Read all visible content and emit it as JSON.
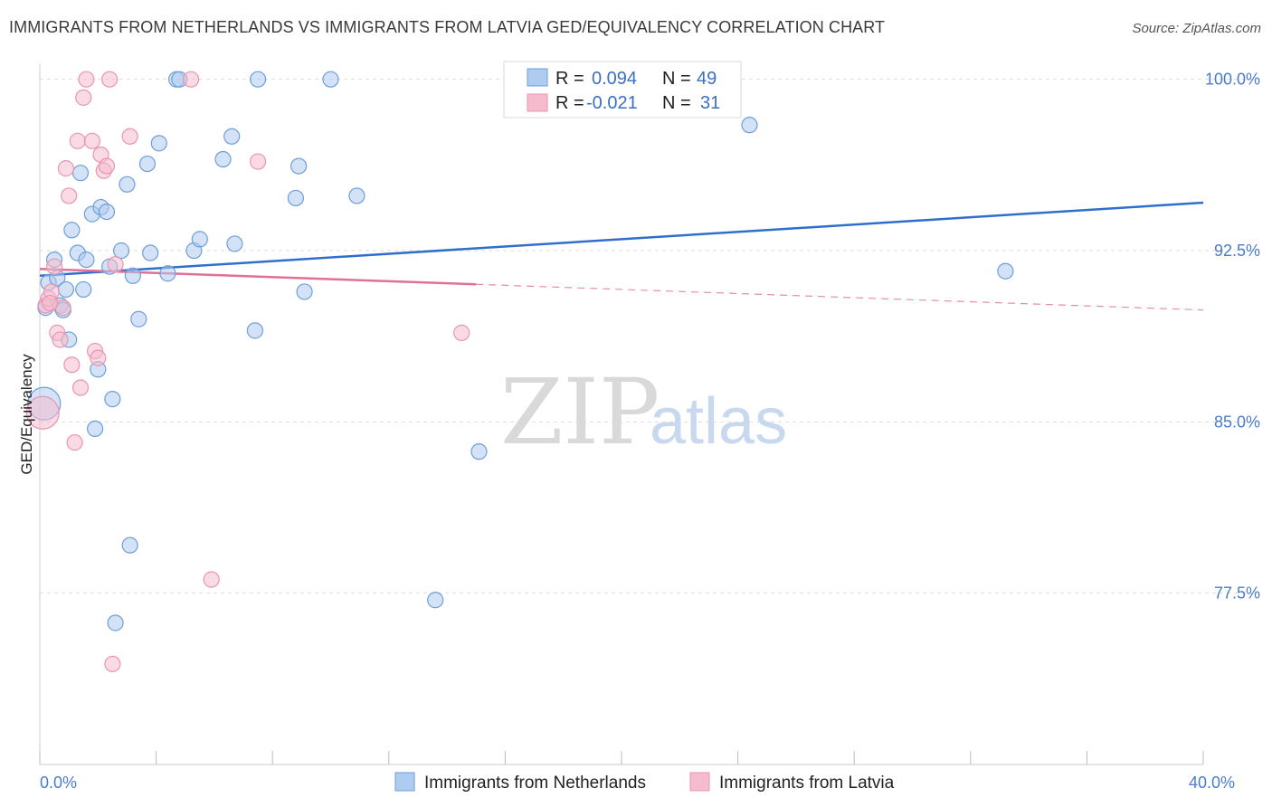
{
  "title": "IMMIGRANTS FROM NETHERLANDS VS IMMIGRANTS FROM LATVIA GED/EQUIVALENCY CORRELATION CHART",
  "source": "Source: ZipAtlas.com",
  "watermark": {
    "zip": "ZIP",
    "atlas": "atlas"
  },
  "colors": {
    "blue_fill": "#aecbf0",
    "blue_stroke": "#6e9fd8",
    "blue_line": "#2f6fcc",
    "pink_fill": "#f5bccd",
    "pink_stroke": "#e896b0",
    "pink_line": "#e07098",
    "tick_text": "#4a7ccc",
    "grid": "#dddddd"
  },
  "legend": {
    "rows": [
      {
        "r_label": "R =",
        "r_value": "0.094",
        "n_label": "N =",
        "n_value": "49"
      },
      {
        "r_label": "R =",
        "r_value": "-0.021",
        "n_label": "N =",
        "n_value": "31"
      }
    ]
  },
  "chart_data": {
    "type": "scatter",
    "ylabel": "GED/Equivalency",
    "xlabel": "",
    "xlim": [
      0,
      40
    ],
    "ylim": [
      70,
      100.7
    ],
    "y_ticks": [
      {
        "value": 100.0,
        "label": "100.0%"
      },
      {
        "value": 92.5,
        "label": "92.5%"
      },
      {
        "value": 85.0,
        "label": "85.0%"
      },
      {
        "value": 77.5,
        "label": "77.5%"
      }
    ],
    "x_tick_labels": [
      {
        "value": 0,
        "label": "0.0%"
      },
      {
        "value": 40,
        "label": "40.0%"
      }
    ],
    "legend_position": "top-center",
    "grid": true,
    "series": [
      {
        "name": "Immigrants from Netherlands",
        "color": "blue",
        "trend": {
          "x0": 0,
          "y0": 91.4,
          "x1": 40,
          "y1": 94.6,
          "dashed_from": null
        },
        "points": [
          [
            0.3,
            91.1
          ],
          [
            0.5,
            92.1
          ],
          [
            0.6,
            91.3
          ],
          [
            0.7,
            90.1
          ],
          [
            0.8,
            89.9
          ],
          [
            0.9,
            90.8
          ],
          [
            1.0,
            88.6
          ],
          [
            1.1,
            93.4
          ],
          [
            1.3,
            92.4
          ],
          [
            1.4,
            95.9
          ],
          [
            1.5,
            90.8
          ],
          [
            1.6,
            92.1
          ],
          [
            1.8,
            94.1
          ],
          [
            1.9,
            84.7
          ],
          [
            2.0,
            87.3
          ],
          [
            2.1,
            94.4
          ],
          [
            2.3,
            94.2
          ],
          [
            2.4,
            91.8
          ],
          [
            2.5,
            86.0
          ],
          [
            2.6,
            76.2
          ],
          [
            2.8,
            92.5
          ],
          [
            3.0,
            95.4
          ],
          [
            3.1,
            79.6
          ],
          [
            3.2,
            91.4
          ],
          [
            3.4,
            89.5
          ],
          [
            3.7,
            96.3
          ],
          [
            3.8,
            92.4
          ],
          [
            4.1,
            97.2
          ],
          [
            4.4,
            91.5
          ],
          [
            4.7,
            100.0
          ],
          [
            4.8,
            100.0
          ],
          [
            5.3,
            92.5
          ],
          [
            5.5,
            93.0
          ],
          [
            6.3,
            96.5
          ],
          [
            6.6,
            97.5
          ],
          [
            6.7,
            92.8
          ],
          [
            7.4,
            89.0
          ],
          [
            7.5,
            100.0
          ],
          [
            8.8,
            94.8
          ],
          [
            8.9,
            96.2
          ],
          [
            9.1,
            90.7
          ],
          [
            10.0,
            100.0
          ],
          [
            10.9,
            94.9
          ],
          [
            13.6,
            77.2
          ],
          [
            15.1,
            83.7
          ],
          [
            24.4,
            98.0
          ],
          [
            33.2,
            91.6
          ],
          [
            0.15,
            85.8
          ],
          [
            0.2,
            90.0
          ]
        ]
      },
      {
        "name": "Immigrants from Latvia",
        "color": "pink",
        "trend": {
          "x0": 0,
          "y0": 91.7,
          "x1": 40,
          "y1": 89.9,
          "dashed_from": 15
        },
        "points": [
          [
            0.1,
            85.4
          ],
          [
            0.2,
            90.1
          ],
          [
            0.3,
            90.4
          ],
          [
            0.4,
            90.7
          ],
          [
            0.5,
            91.8
          ],
          [
            0.6,
            88.9
          ],
          [
            0.7,
            88.6
          ],
          [
            0.8,
            90.0
          ],
          [
            0.9,
            96.1
          ],
          [
            1.0,
            94.9
          ],
          [
            1.1,
            87.5
          ],
          [
            1.2,
            84.1
          ],
          [
            1.3,
            97.3
          ],
          [
            1.4,
            86.5
          ],
          [
            1.5,
            99.2
          ],
          [
            1.6,
            100.0
          ],
          [
            1.8,
            97.3
          ],
          [
            1.9,
            88.1
          ],
          [
            2.0,
            87.8
          ],
          [
            2.1,
            96.7
          ],
          [
            2.2,
            96.0
          ],
          [
            2.3,
            96.2
          ],
          [
            2.4,
            100.0
          ],
          [
            2.5,
            74.4
          ],
          [
            2.6,
            91.9
          ],
          [
            3.1,
            97.5
          ],
          [
            5.2,
            100.0
          ],
          [
            5.9,
            78.1
          ],
          [
            7.5,
            96.4
          ],
          [
            14.5,
            88.9
          ],
          [
            0.35,
            90.2
          ]
        ]
      }
    ]
  }
}
